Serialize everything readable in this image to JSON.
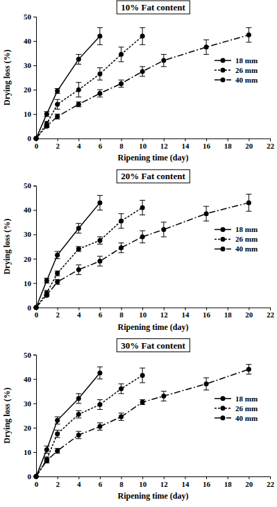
{
  "chart_data": [
    {
      "type": "line",
      "title": "10% Fat content",
      "x_label": "Ripening time (day)",
      "y_label": "Drying loss (%)",
      "xlim": [
        0,
        22
      ],
      "xticks": [
        0,
        2,
        4,
        6,
        8,
        10,
        12,
        14,
        16,
        18,
        20,
        22
      ],
      "ylim": [
        0,
        50
      ],
      "yticks": [
        0,
        10,
        20,
        30,
        40,
        50
      ],
      "legend": "right",
      "series": [
        {
          "name": "18 mm",
          "color": "#000000",
          "marker": "circle",
          "line_style": "solid",
          "x": [
            0,
            1,
            2,
            4,
            6
          ],
          "values": [
            0,
            10,
            19.5,
            32.5,
            42
          ],
          "errors": [
            0,
            1,
            1,
            2,
            3.5
          ]
        },
        {
          "name": "26 mm",
          "color": "#000000",
          "marker": "circle",
          "line_style": "dotted",
          "x": [
            0,
            1,
            2,
            4,
            6,
            8,
            10
          ],
          "values": [
            0,
            6,
            14,
            20,
            26.5,
            34.5,
            42
          ],
          "errors": [
            0,
            1,
            2,
            3,
            2.5,
            3,
            3.5
          ]
        },
        {
          "name": "40 mm",
          "color": "#000000",
          "marker": "circle",
          "line_style": "dashdot",
          "x": [
            0,
            1,
            2,
            4,
            6,
            8,
            10,
            12,
            16,
            20
          ],
          "values": [
            0,
            5,
            9,
            14,
            18.5,
            22.5,
            27.5,
            32,
            37.5,
            42.5
          ],
          "errors": [
            0,
            0.5,
            1,
            1,
            1.5,
            1.5,
            2,
            2.5,
            3,
            3
          ]
        }
      ]
    },
    {
      "type": "line",
      "title": "20% Fat content",
      "x_label": "Ripening time (day)",
      "y_label": "Drying loss (%)",
      "xlim": [
        0,
        22
      ],
      "xticks": [
        0,
        2,
        4,
        6,
        8,
        10,
        12,
        14,
        16,
        18,
        20,
        22
      ],
      "ylim": [
        0,
        50
      ],
      "yticks": [
        0,
        10,
        20,
        30,
        40,
        50
      ],
      "legend": "right",
      "series": [
        {
          "name": "18 mm",
          "color": "#000000",
          "marker": "circle",
          "line_style": "solid",
          "x": [
            0,
            1,
            2,
            4,
            6
          ],
          "values": [
            0,
            11,
            21.5,
            32.5,
            43
          ],
          "errors": [
            0,
            1,
            1.5,
            2,
            3
          ]
        },
        {
          "name": "26 mm",
          "color": "#000000",
          "marker": "circle",
          "line_style": "dotted",
          "x": [
            0,
            1,
            2,
            4,
            6,
            8,
            10
          ],
          "values": [
            0,
            6,
            14,
            24,
            27.5,
            35.5,
            41
          ],
          "errors": [
            0,
            1,
            1,
            1,
            1.5,
            3,
            3
          ]
        },
        {
          "name": "40 mm",
          "color": "#000000",
          "marker": "circle",
          "line_style": "dashdot",
          "x": [
            0,
            1,
            2,
            4,
            6,
            8,
            10,
            12,
            16,
            20
          ],
          "values": [
            0,
            5,
            10.5,
            15.5,
            19,
            24.5,
            29,
            32,
            38.5,
            43
          ],
          "errors": [
            0,
            0.5,
            1,
            2,
            2,
            2,
            2.5,
            3,
            3,
            3.5
          ]
        }
      ]
    },
    {
      "type": "line",
      "title": "30% Fat content",
      "x_label": "Ripening time (day)",
      "y_label": "Drying loss (%)",
      "xlim": [
        0,
        22
      ],
      "xticks": [
        0,
        2,
        4,
        6,
        8,
        10,
        12,
        14,
        16,
        18,
        20,
        22
      ],
      "ylim": [
        0,
        50
      ],
      "yticks": [
        0,
        10,
        20,
        30,
        40,
        50
      ],
      "legend": "right",
      "series": [
        {
          "name": "18 mm",
          "color": "#000000",
          "marker": "circle",
          "line_style": "solid",
          "x": [
            0,
            1,
            2,
            4,
            6
          ],
          "values": [
            0,
            11,
            23,
            32,
            42.5
          ],
          "errors": [
            0,
            1.5,
            1.5,
            2,
            2.5
          ]
        },
        {
          "name": "26 mm",
          "color": "#000000",
          "marker": "circle",
          "line_style": "dotted",
          "x": [
            0,
            1,
            2,
            4,
            6,
            8,
            10
          ],
          "values": [
            0,
            7,
            17.5,
            25.5,
            29.5,
            36,
            41.5
          ],
          "errors": [
            0,
            1,
            1.5,
            1.5,
            2,
            2,
            3
          ]
        },
        {
          "name": "40 mm",
          "color": "#000000",
          "marker": "circle",
          "line_style": "dashdot",
          "x": [
            0,
            1,
            2,
            4,
            6,
            8,
            10,
            12,
            16,
            20
          ],
          "values": [
            0,
            6.5,
            10.5,
            17,
            20.5,
            24.5,
            30.5,
            33,
            38,
            44
          ],
          "errors": [
            0,
            1,
            1,
            1.5,
            1.5,
            1.5,
            1,
            2,
            2.5,
            2
          ]
        }
      ]
    }
  ]
}
